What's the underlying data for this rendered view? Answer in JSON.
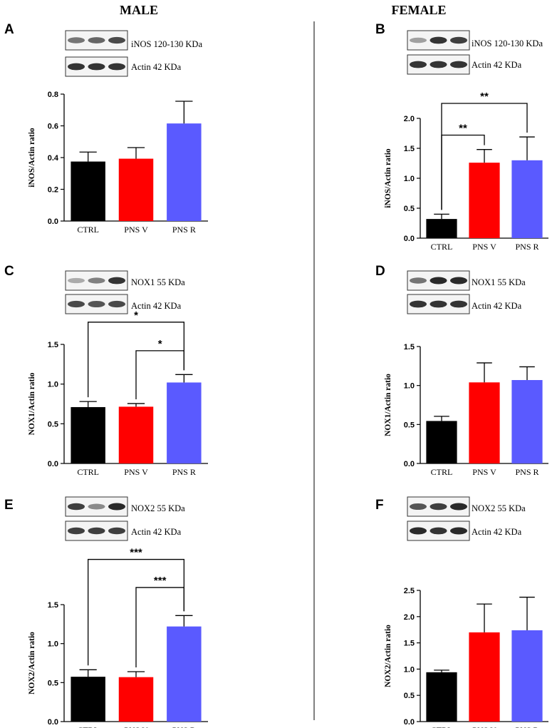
{
  "headers": {
    "male": "MALE",
    "female": "FEMALE"
  },
  "colors": {
    "CTRL": "#000000",
    "PNS V": "#ff0000",
    "PNS R": "#5a5aff"
  },
  "panels": [
    {
      "id": "A",
      "letter": "A",
      "blots": [
        {
          "label": "iNOS 120-130 KDa",
          "intensity": [
            0.55,
            0.62,
            0.75
          ]
        },
        {
          "label": "Actin  42 KDa",
          "intensity": [
            0.85,
            0.85,
            0.85
          ]
        }
      ]
    },
    {
      "id": "B",
      "letter": "B",
      "blots": [
        {
          "label": "iNOS 120-130 KDa",
          "intensity": [
            0.35,
            0.85,
            0.8
          ]
        },
        {
          "label": "Actin  42 KDa",
          "intensity": [
            0.85,
            0.85,
            0.85
          ]
        }
      ]
    },
    {
      "id": "C",
      "letter": "C",
      "blots": [
        {
          "label": "NOX1 55 KDa",
          "intensity": [
            0.3,
            0.5,
            0.85
          ]
        },
        {
          "label": "Actin  42 KDa",
          "intensity": [
            0.75,
            0.7,
            0.75
          ]
        }
      ]
    },
    {
      "id": "D",
      "letter": "D",
      "blots": [
        {
          "label": "NOX1 55 KDa",
          "intensity": [
            0.55,
            0.9,
            0.9
          ]
        },
        {
          "label": "Actin  42 KDa",
          "intensity": [
            0.85,
            0.85,
            0.85
          ]
        }
      ]
    },
    {
      "id": "E",
      "letter": "E",
      "blots": [
        {
          "label": "NOX2 55 KDa",
          "intensity": [
            0.8,
            0.45,
            0.9
          ]
        },
        {
          "label": "Actin  42 KDa",
          "intensity": [
            0.8,
            0.8,
            0.8
          ]
        }
      ]
    },
    {
      "id": "F",
      "letter": "F",
      "blots": [
        {
          "label": "NOX2 55 KDa",
          "intensity": [
            0.7,
            0.8,
            0.9
          ]
        },
        {
          "label": "Actin  42 KDa",
          "intensity": [
            0.9,
            0.85,
            0.9
          ]
        }
      ]
    }
  ],
  "chart_data": [
    {
      "panel": "A",
      "type": "bar",
      "ylabel": "iNOS/Actin ratio",
      "categories": [
        "CTRL",
        "PNS V",
        "PNS R"
      ],
      "values": [
        0.375,
        0.393,
        0.615
      ],
      "errors": [
        0.06,
        0.07,
        0.14
      ],
      "ylim": [
        0,
        0.8
      ],
      "yticks": [
        "0.0",
        "0.2",
        "0.4",
        "0.6",
        "0.8"
      ],
      "significance": []
    },
    {
      "panel": "B",
      "type": "bar",
      "ylabel": "iNOS/Actin ratio",
      "categories": [
        "CTRL",
        "PNS V",
        "PNS R"
      ],
      "values": [
        0.32,
        1.26,
        1.3
      ],
      "errors": [
        0.08,
        0.22,
        0.39
      ],
      "ylim": [
        0,
        2.0
      ],
      "yticks": [
        "0.0",
        "0.5",
        "1.0",
        "1.5",
        "2.0"
      ],
      "significance": [
        {
          "from": 0,
          "to": 1,
          "level": 1.72,
          "label": "**"
        },
        {
          "from": 0,
          "to": 2,
          "level": 2.25,
          "label": "**"
        }
      ]
    },
    {
      "panel": "C",
      "type": "bar",
      "ylabel": "NOX1/Actin ratio",
      "categories": [
        "CTRL",
        "PNS V",
        "PNS R"
      ],
      "values": [
        0.71,
        0.715,
        1.02
      ],
      "errors": [
        0.07,
        0.04,
        0.1
      ],
      "ylim": [
        0,
        1.5
      ],
      "yticks": [
        "0.0",
        "0.5",
        "1.0",
        "1.5"
      ],
      "significance": [
        {
          "from": 1,
          "to": 2,
          "level": 1.42,
          "label": "*"
        },
        {
          "from": 0,
          "to": 2,
          "level": 1.78,
          "label": "*"
        }
      ]
    },
    {
      "panel": "D",
      "type": "bar",
      "ylabel": "NOX1/Actin ratio",
      "categories": [
        "CTRL",
        "PNS V",
        "PNS R"
      ],
      "values": [
        0.545,
        1.04,
        1.07
      ],
      "errors": [
        0.06,
        0.25,
        0.17
      ],
      "ylim": [
        0,
        1.5
      ],
      "yticks": [
        "0.0",
        "0.5",
        "1.0",
        "1.5"
      ],
      "significance": []
    },
    {
      "panel": "E",
      "type": "bar",
      "ylabel": "NOX2/Actin ratio",
      "categories": [
        "CTRL",
        "PNS V",
        "PNS R"
      ],
      "values": [
        0.575,
        0.57,
        1.22
      ],
      "errors": [
        0.09,
        0.07,
        0.14
      ],
      "ylim": [
        0,
        1.5
      ],
      "yticks": [
        "0.0",
        "0.5",
        "1.0",
        "1.5"
      ],
      "significance": [
        {
          "from": 1,
          "to": 2,
          "level": 1.72,
          "label": "***"
        },
        {
          "from": 0,
          "to": 2,
          "level": 2.08,
          "label": "***"
        }
      ]
    },
    {
      "panel": "F",
      "type": "bar",
      "ylabel": "NOX2/Actin ratio",
      "categories": [
        "CTRL",
        "PNS V",
        "PNS R"
      ],
      "values": [
        0.94,
        1.7,
        1.74
      ],
      "errors": [
        0.04,
        0.54,
        0.63
      ],
      "ylim": [
        0,
        2.5
      ],
      "yticks": [
        "0.0",
        "0.5",
        "1.0",
        "1.5",
        "2.0",
        "2.5"
      ],
      "significance": []
    }
  ]
}
